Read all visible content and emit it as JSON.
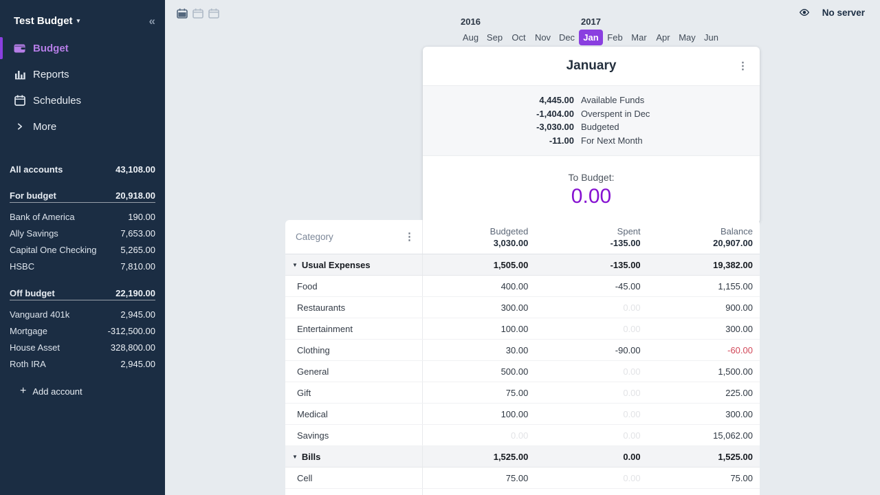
{
  "app": {
    "no_server_label": "No server"
  },
  "icons": {
    "caret_down": "▾",
    "collapse": "«",
    "kebab": "⋮",
    "plus": "+",
    "collapse_triangle": "▼"
  },
  "colors": {
    "sidebar_bg": "#1b2d43",
    "accent_purple": "#8a3fe0",
    "active_nav_purple": "#b57de6",
    "to_budget_purple": "#8611d1",
    "negative_red": "#d14758",
    "main_bg": "#e7ebef"
  },
  "sidebar": {
    "title": "Test Budget",
    "nav": [
      {
        "label": "Budget",
        "icon": "wallet-icon",
        "active": true
      },
      {
        "label": "Reports",
        "icon": "bar-chart-icon",
        "active": false
      },
      {
        "label": "Schedules",
        "icon": "calendar-icon",
        "active": false
      },
      {
        "label": "More",
        "icon": "chevron-right-icon",
        "active": false
      }
    ],
    "accounts": {
      "all": {
        "label": "All accounts",
        "amount": "43,108.00"
      },
      "groups": [
        {
          "label": "For budget",
          "amount": "20,918.00",
          "items": [
            {
              "name": "Bank of America",
              "amount": "190.00"
            },
            {
              "name": "Ally Savings",
              "amount": "7,653.00"
            },
            {
              "name": "Capital One Checking",
              "amount": "5,265.00"
            },
            {
              "name": "HSBC",
              "amount": "7,810.00"
            }
          ]
        },
        {
          "label": "Off budget",
          "amount": "22,190.00",
          "items": [
            {
              "name": "Vanguard 401k",
              "amount": "2,945.00"
            },
            {
              "name": "Mortgage",
              "amount": "-312,500.00"
            },
            {
              "name": "House Asset",
              "amount": "328,800.00"
            },
            {
              "name": "Roth IRA",
              "amount": "2,945.00"
            }
          ]
        }
      ]
    },
    "add_account_label": "Add account"
  },
  "month_nav": {
    "years": [
      {
        "label": "2016",
        "month_index": 0
      },
      {
        "label": "2017",
        "month_index": 5
      }
    ],
    "months": [
      {
        "label": "Aug",
        "selected": false
      },
      {
        "label": "Sep",
        "selected": false
      },
      {
        "label": "Oct",
        "selected": false
      },
      {
        "label": "Nov",
        "selected": false
      },
      {
        "label": "Dec",
        "selected": false
      },
      {
        "label": "Jan",
        "selected": true
      },
      {
        "label": "Feb",
        "selected": false
      },
      {
        "label": "Mar",
        "selected": false
      },
      {
        "label": "Apr",
        "selected": false
      },
      {
        "label": "May",
        "selected": false
      },
      {
        "label": "Jun",
        "selected": false
      }
    ]
  },
  "budget_card": {
    "title": "January",
    "summary_rows": [
      {
        "amount": "4,445.00",
        "label": "Available Funds"
      },
      {
        "amount": "-1,404.00",
        "label": "Overspent in Dec"
      },
      {
        "amount": "-3,030.00",
        "label": "Budgeted"
      },
      {
        "amount": "-11.00",
        "label": "For Next Month"
      }
    ],
    "to_budget_label": "To Budget:",
    "to_budget_amount": "0.00"
  },
  "table": {
    "category_header": "Category",
    "columns": [
      {
        "label": "Budgeted",
        "total": "3,030.00"
      },
      {
        "label": "Spent",
        "total": "-135.00"
      },
      {
        "label": "Balance",
        "total": "20,907.00"
      }
    ],
    "rows": [
      {
        "name": "Usual Expenses",
        "type": "group",
        "budgeted": "1,505.00",
        "spent": "-135.00",
        "balance": "19,382.00"
      },
      {
        "name": "Food",
        "type": "category",
        "budgeted": "400.00",
        "spent": "-45.00",
        "balance": "1,155.00"
      },
      {
        "name": "Restaurants",
        "type": "category",
        "budgeted": "300.00",
        "spent": "0.00",
        "balance": "900.00"
      },
      {
        "name": "Entertainment",
        "type": "category",
        "budgeted": "100.00",
        "spent": "0.00",
        "balance": "300.00"
      },
      {
        "name": "Clothing",
        "type": "category",
        "budgeted": "30.00",
        "spent": "-90.00",
        "balance": "-60.00"
      },
      {
        "name": "General",
        "type": "category",
        "budgeted": "500.00",
        "spent": "0.00",
        "balance": "1,500.00"
      },
      {
        "name": "Gift",
        "type": "category",
        "budgeted": "75.00",
        "spent": "0.00",
        "balance": "225.00"
      },
      {
        "name": "Medical",
        "type": "category",
        "budgeted": "100.00",
        "spent": "0.00",
        "balance": "300.00"
      },
      {
        "name": "Savings",
        "type": "category",
        "budgeted": "0.00",
        "spent": "0.00",
        "balance": "15,062.00"
      },
      {
        "name": "Bills",
        "type": "group",
        "budgeted": "1,525.00",
        "spent": "0.00",
        "balance": "1,525.00"
      },
      {
        "name": "Cell",
        "type": "category",
        "budgeted": "75.00",
        "spent": "0.00",
        "balance": "75.00"
      }
    ]
  }
}
